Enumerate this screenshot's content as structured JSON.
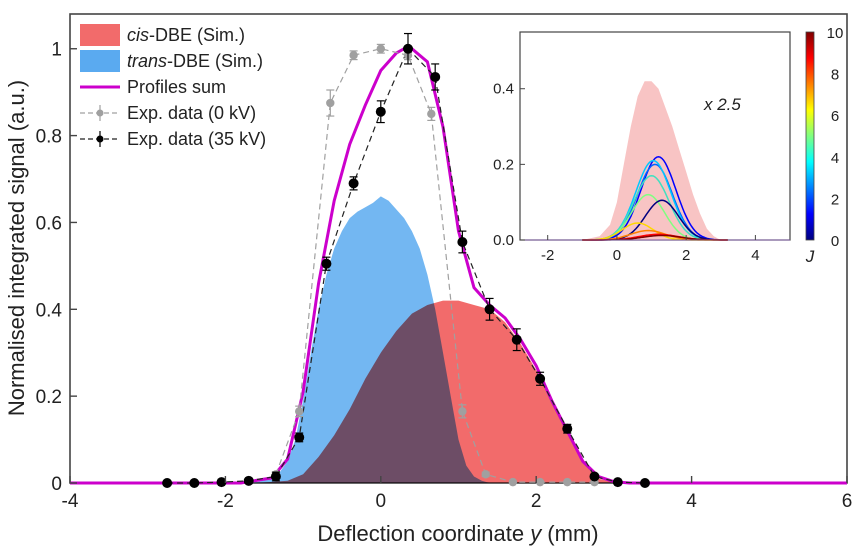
{
  "chart_data": [
    {
      "type": "area",
      "xlabel": "Deflection coordinate y (mm)",
      "xlabel_parts": {
        "before": "Deflection coordinate ",
        "italic": "y",
        "after": " (mm)"
      },
      "ylabel": "Normalised integrated signal (a.u.)",
      "xlim": [
        -4,
        6
      ],
      "ylim": [
        0,
        1.08
      ],
      "xticks": [
        "-4",
        "-2",
        "0",
        "2",
        "4",
        "6"
      ],
      "xtick_values": [
        -4,
        -2,
        0,
        2,
        4,
        6
      ],
      "yticks": [
        "0",
        "0.2",
        "0.4",
        "0.6",
        "0.8",
        "1"
      ],
      "ytick_values": [
        0,
        0.2,
        0.4,
        0.6,
        0.8,
        1
      ],
      "legend_position": "top-left",
      "legend": [
        {
          "italic": "cis",
          "text": "-DBE (Sim.)",
          "color": "#f26b6b",
          "kind": "patch"
        },
        {
          "italic": "trans",
          "text": "-DBE (Sim.)",
          "color": "#5aaaf0",
          "kind": "patch"
        },
        {
          "italic": "",
          "text": "Profiles sum",
          "color": "#cc00cc",
          "kind": "line"
        },
        {
          "italic": "",
          "text": "Exp. data (0 kV)",
          "color": "#a0a0a0",
          "kind": "errorbar"
        },
        {
          "italic": "",
          "text": "Exp. data (35 kV)",
          "color": "#000000",
          "kind": "errorbar"
        }
      ],
      "series": [
        {
          "name": "cis-DBE (Sim.)",
          "type": "area",
          "color": "#f26b6b",
          "x": [
            -1.6,
            -1.2,
            -1.0,
            -0.8,
            -0.6,
            -0.4,
            -0.2,
            0.0,
            0.2,
            0.4,
            0.6,
            0.8,
            1.0,
            1.2,
            1.4,
            1.6,
            1.8,
            2.0,
            2.2,
            2.4,
            2.6,
            2.8,
            3.0,
            3.2
          ],
          "y": [
            0.0,
            0.005,
            0.02,
            0.06,
            0.11,
            0.17,
            0.24,
            0.3,
            0.35,
            0.39,
            0.41,
            0.42,
            0.42,
            0.41,
            0.4,
            0.37,
            0.32,
            0.26,
            0.19,
            0.12,
            0.05,
            0.01,
            0.002,
            0.0
          ]
        },
        {
          "name": "trans-DBE (Sim.)",
          "type": "area",
          "color": "#5aaaf0",
          "x": [
            -2.0,
            -1.6,
            -1.4,
            -1.3,
            -1.2,
            -1.1,
            -1.0,
            -0.9,
            -0.8,
            -0.7,
            -0.6,
            -0.5,
            -0.4,
            -0.3,
            -0.2,
            -0.1,
            0.0,
            0.1,
            0.2,
            0.3,
            0.4,
            0.5,
            0.6,
            0.7,
            0.8,
            0.9,
            1.0,
            1.1,
            1.2,
            1.3,
            1.4,
            1.6
          ],
          "y": [
            0.0,
            0.002,
            0.01,
            0.025,
            0.05,
            0.1,
            0.19,
            0.3,
            0.4,
            0.48,
            0.54,
            0.58,
            0.61,
            0.625,
            0.635,
            0.645,
            0.66,
            0.65,
            0.63,
            0.61,
            0.58,
            0.54,
            0.48,
            0.4,
            0.3,
            0.2,
            0.1,
            0.04,
            0.015,
            0.005,
            0.0,
            0.0
          ]
        },
        {
          "name": "Profiles sum",
          "type": "line",
          "color": "#cc00cc",
          "x": [
            -4.0,
            -1.8,
            -1.4,
            -1.2,
            -1.0,
            -0.8,
            -0.6,
            -0.4,
            -0.2,
            0.0,
            0.2,
            0.3,
            0.4,
            0.6,
            0.8,
            1.0,
            1.2,
            1.4,
            1.6,
            1.8,
            2.0,
            2.2,
            2.4,
            2.6,
            2.8,
            3.0,
            3.2,
            6.0
          ],
          "y": [
            0.0,
            0.0,
            0.012,
            0.055,
            0.21,
            0.46,
            0.65,
            0.78,
            0.87,
            0.95,
            0.99,
            1.0,
            1.0,
            0.97,
            0.82,
            0.58,
            0.45,
            0.41,
            0.38,
            0.33,
            0.27,
            0.19,
            0.12,
            0.05,
            0.015,
            0.003,
            0.0,
            0.0
          ]
        },
        {
          "name": "Exp. data (0 kV)",
          "type": "errorbar_line",
          "color": "#a0a0a0",
          "x": [
            -1.35,
            -1.05,
            -0.65,
            -0.35,
            0.0,
            0.35,
            0.65,
            1.05,
            1.35,
            1.7,
            2.05,
            2.4,
            2.75
          ],
          "y": [
            0.02,
            0.165,
            0.875,
            0.985,
            1.0,
            0.985,
            0.85,
            0.165,
            0.02,
            0.002,
            0.002,
            0.002,
            0.002
          ],
          "err": [
            0.005,
            0.012,
            0.03,
            0.01,
            0.01,
            0.01,
            0.015,
            0.015,
            0.005,
            0.0,
            0.0,
            0.0,
            0.0
          ]
        },
        {
          "name": "Exp. data (35 kV)",
          "type": "errorbar_line",
          "color": "#000000",
          "x": [
            -2.75,
            -2.4,
            -2.05,
            -1.7,
            -1.35,
            -1.05,
            -0.7,
            -0.35,
            0.0,
            0.35,
            0.7,
            1.05,
            1.4,
            1.75,
            2.05,
            2.4,
            2.75,
            3.05,
            3.4
          ],
          "y": [
            0.0,
            0.0,
            0.002,
            0.005,
            0.015,
            0.105,
            0.505,
            0.69,
            0.855,
            1.0,
            0.935,
            0.555,
            0.4,
            0.33,
            0.24,
            0.125,
            0.015,
            0.002,
            0.0
          ],
          "err": [
            0.0,
            0.0,
            0.0,
            0.005,
            0.01,
            0.01,
            0.015,
            0.015,
            0.025,
            0.035,
            0.03,
            0.025,
            0.025,
            0.025,
            0.015,
            0.01,
            0.005,
            0.0,
            0.0
          ]
        }
      ]
    },
    {
      "type": "area",
      "role": "inset",
      "annotation": "x 2.5",
      "xlim": [
        -2.8,
        5.0
      ],
      "ylim": [
        0,
        0.55
      ],
      "xticks": [
        "-2",
        "0",
        "2",
        "4"
      ],
      "xtick_values": [
        -2,
        0,
        2,
        4
      ],
      "yticks": [
        "0.0",
        "0.2",
        "0.4"
      ],
      "ytick_values": [
        0,
        0.2,
        0.4
      ],
      "colorbar": {
        "label": "J",
        "range": [
          0,
          10
        ],
        "ticks": [
          "0",
          "2",
          "4",
          "6",
          "8",
          "10"
        ],
        "tick_values": [
          0,
          2,
          4,
          6,
          8,
          10
        ],
        "colors": [
          "#00007f",
          "#0000ff",
          "#0080ff",
          "#00ffff",
          "#80ff80",
          "#ffff00",
          "#ff8000",
          "#ff0000",
          "#7f0000"
        ]
      },
      "series": [
        {
          "name": "total (shaded)",
          "type": "area",
          "color": "#f8c4c4",
          "x": [
            -1.0,
            -0.5,
            -0.2,
            0.0,
            0.2,
            0.4,
            0.6,
            0.8,
            1.0,
            1.2,
            1.4,
            1.6,
            1.8,
            2.0,
            2.2,
            2.4,
            2.6,
            2.8,
            3.0
          ],
          "y": [
            0.0,
            0.01,
            0.04,
            0.1,
            0.2,
            0.3,
            0.38,
            0.42,
            0.42,
            0.4,
            0.35,
            0.3,
            0.24,
            0.18,
            0.12,
            0.07,
            0.03,
            0.01,
            0.0
          ]
        },
        {
          "name": "J=1",
          "type": "line",
          "color": "#0000ff",
          "peak": 0.22,
          "center": 1.2,
          "width": 0.9
        },
        {
          "name": "J=2",
          "type": "line",
          "color": "#0064ff",
          "peak": 0.2,
          "center": 1.1,
          "width": 0.9
        },
        {
          "name": "J=3",
          "type": "line",
          "color": "#00c8ff",
          "peak": 0.21,
          "center": 1.05,
          "width": 0.9
        },
        {
          "name": "J=4",
          "type": "line",
          "color": "#40e0c0",
          "peak": 0.17,
          "center": 1.0,
          "width": 0.9
        },
        {
          "name": "J=4.5",
          "type": "line",
          "color": "#80ff80",
          "peak": 0.12,
          "center": 0.9,
          "width": 0.85
        },
        {
          "name": "J=0",
          "type": "line",
          "color": "#00007f",
          "peak": 0.105,
          "center": 1.3,
          "width": 0.85
        },
        {
          "name": "J=6",
          "type": "line",
          "color": "#ffd700",
          "peak": 0.045,
          "center": 0.6,
          "width": 0.8
        },
        {
          "name": "J=7",
          "type": "line",
          "color": "#ff8000",
          "peak": 0.025,
          "center": 0.9,
          "width": 0.9
        },
        {
          "name": "J=8",
          "type": "line",
          "color": "#ff0000",
          "peak": 0.015,
          "center": 1.2,
          "width": 1.0
        },
        {
          "name": "J=9",
          "type": "line",
          "color": "#7f0000",
          "peak": 0.012,
          "center": 1.3,
          "width": 1.0
        }
      ]
    }
  ]
}
